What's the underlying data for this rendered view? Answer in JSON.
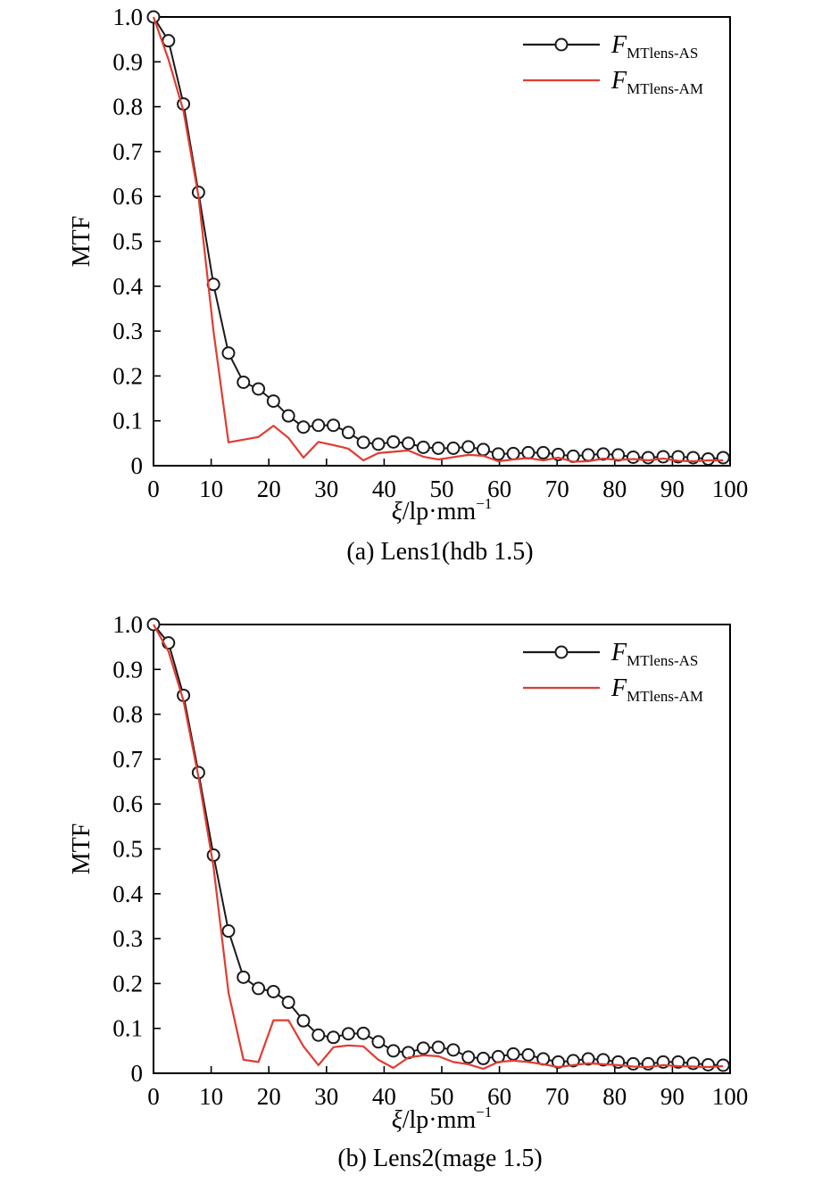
{
  "chart_data": [
    {
      "type": "line",
      "caption": "(a) Lens1(hdb 1.5)",
      "xlabel_main": "ξ/lp·mm",
      "xlabel_sup": "−1",
      "ylabel": "MTF",
      "xlim": [
        0,
        100
      ],
      "ylim": [
        0,
        1.0
      ],
      "xticks": [
        0,
        10,
        20,
        30,
        40,
        50,
        60,
        70,
        80,
        90,
        100
      ],
      "yticks": [
        0,
        0.1,
        0.2,
        0.3,
        0.4,
        0.5,
        0.6,
        0.7,
        0.8,
        0.9,
        1.0
      ],
      "ytick_labels": [
        "0",
        "0.1",
        "0.2",
        "0.3",
        "0.4",
        "0.5",
        "0.6",
        "0.7",
        "0.8",
        "0.9",
        "1.0"
      ],
      "legend_position": "top-right",
      "series": [
        {
          "name_main": "F",
          "name_sub": "MTlens-AS",
          "color": "#1a1a1a",
          "marker": "circle",
          "x": [
            0,
            2.6,
            5.2,
            7.8,
            10.4,
            13.0,
            15.6,
            18.2,
            20.8,
            23.4,
            26.0,
            28.6,
            31.2,
            33.8,
            36.4,
            39.0,
            41.6,
            44.2,
            46.8,
            49.4,
            52.0,
            54.6,
            57.2,
            59.8,
            62.4,
            65.0,
            67.6,
            70.2,
            72.8,
            75.4,
            78.0,
            80.6,
            83.2,
            85.8,
            88.4,
            91.0,
            93.6,
            96.2,
            98.8
          ],
          "y": [
            1.0,
            0.947,
            0.806,
            0.609,
            0.404,
            0.251,
            0.186,
            0.171,
            0.144,
            0.111,
            0.086,
            0.09,
            0.09,
            0.074,
            0.052,
            0.048,
            0.053,
            0.05,
            0.041,
            0.039,
            0.039,
            0.042,
            0.036,
            0.026,
            0.027,
            0.029,
            0.029,
            0.025,
            0.021,
            0.024,
            0.026,
            0.024,
            0.019,
            0.018,
            0.02,
            0.02,
            0.018,
            0.015,
            0.018
          ]
        },
        {
          "name_main": "F",
          "name_sub": "MTlens-AM",
          "color": "#e03c31",
          "marker": "none",
          "x": [
            0,
            2.6,
            5.2,
            7.8,
            10.4,
            13.0,
            15.6,
            18.2,
            20.8,
            23.4,
            26.0,
            28.6,
            31.2,
            33.8,
            36.4,
            39.0,
            41.6,
            44.2,
            46.8,
            49.4,
            52.0,
            54.6,
            57.2,
            59.8,
            62.4,
            65.0,
            67.6,
            70.2,
            72.8,
            75.4,
            78.0,
            80.6,
            83.2,
            85.8,
            88.4,
            91.0,
            93.6,
            96.2,
            98.8
          ],
          "y": [
            1.0,
            0.905,
            0.79,
            0.6,
            0.3,
            0.052,
            0.058,
            0.064,
            0.089,
            0.062,
            0.018,
            0.053,
            0.046,
            0.038,
            0.012,
            0.028,
            0.031,
            0.034,
            0.02,
            0.014,
            0.019,
            0.024,
            0.022,
            0.01,
            0.014,
            0.017,
            0.012,
            0.018,
            0.009,
            0.01,
            0.016,
            0.013,
            0.015,
            0.012,
            0.016,
            0.011,
            0.01,
            0.012,
            0.012
          ]
        }
      ]
    },
    {
      "type": "line",
      "caption": "(b) Lens2(mage 1.5)",
      "xlabel_main": "ξ/lp·mm",
      "xlabel_sup": "−1",
      "ylabel": "MTF",
      "xlim": [
        0,
        100
      ],
      "ylim": [
        0,
        1.0
      ],
      "xticks": [
        0,
        10,
        20,
        30,
        40,
        50,
        60,
        70,
        80,
        90,
        100
      ],
      "yticks": [
        0,
        0.1,
        0.2,
        0.3,
        0.4,
        0.5,
        0.6,
        0.7,
        0.8,
        0.9,
        1.0
      ],
      "ytick_labels": [
        "0",
        "0.1",
        "0.2",
        "0.3",
        "0.4",
        "0.5",
        "0.6",
        "0.7",
        "0.8",
        "0.9",
        "1.0"
      ],
      "legend_position": "top-right",
      "series": [
        {
          "name_main": "F",
          "name_sub": "MTlens-AS",
          "color": "#1a1a1a",
          "marker": "circle",
          "x": [
            0,
            2.6,
            5.2,
            7.8,
            10.4,
            13.0,
            15.6,
            18.2,
            20.8,
            23.4,
            26.0,
            28.6,
            31.2,
            33.8,
            36.4,
            39.0,
            41.6,
            44.2,
            46.8,
            49.4,
            52.0,
            54.6,
            57.2,
            59.8,
            62.4,
            65.0,
            67.6,
            70.2,
            72.8,
            75.4,
            78.0,
            80.6,
            83.2,
            85.8,
            88.4,
            91.0,
            93.6,
            96.2,
            98.8
          ],
          "y": [
            1.0,
            0.959,
            0.842,
            0.67,
            0.486,
            0.317,
            0.214,
            0.189,
            0.182,
            0.158,
            0.117,
            0.085,
            0.08,
            0.088,
            0.089,
            0.07,
            0.05,
            0.046,
            0.056,
            0.058,
            0.052,
            0.036,
            0.033,
            0.037,
            0.043,
            0.041,
            0.032,
            0.025,
            0.028,
            0.032,
            0.03,
            0.025,
            0.021,
            0.021,
            0.025,
            0.025,
            0.022,
            0.019,
            0.018
          ]
        },
        {
          "name_main": "F",
          "name_sub": "MTlens-AM",
          "color": "#e03c31",
          "marker": "none",
          "x": [
            0,
            2.6,
            5.2,
            7.8,
            10.4,
            13.0,
            15.6,
            18.2,
            20.8,
            23.4,
            26.0,
            28.6,
            31.2,
            33.8,
            36.4,
            39.0,
            41.6,
            44.2,
            46.8,
            49.4,
            52.0,
            54.6,
            57.2,
            59.8,
            62.4,
            65.0,
            67.6,
            70.2,
            72.8,
            75.4,
            78.0,
            80.6,
            83.2,
            85.8,
            88.4,
            91.0,
            93.6,
            96.2,
            98.8
          ],
          "y": [
            1.0,
            0.94,
            0.83,
            0.66,
            0.46,
            0.18,
            0.03,
            0.025,
            0.118,
            0.118,
            0.06,
            0.018,
            0.058,
            0.062,
            0.06,
            0.03,
            0.012,
            0.035,
            0.04,
            0.038,
            0.025,
            0.02,
            0.01,
            0.025,
            0.028,
            0.025,
            0.02,
            0.014,
            0.018,
            0.022,
            0.02,
            0.018,
            0.015,
            0.014,
            0.018,
            0.016,
            0.015,
            0.014,
            0.016
          ]
        }
      ]
    }
  ]
}
